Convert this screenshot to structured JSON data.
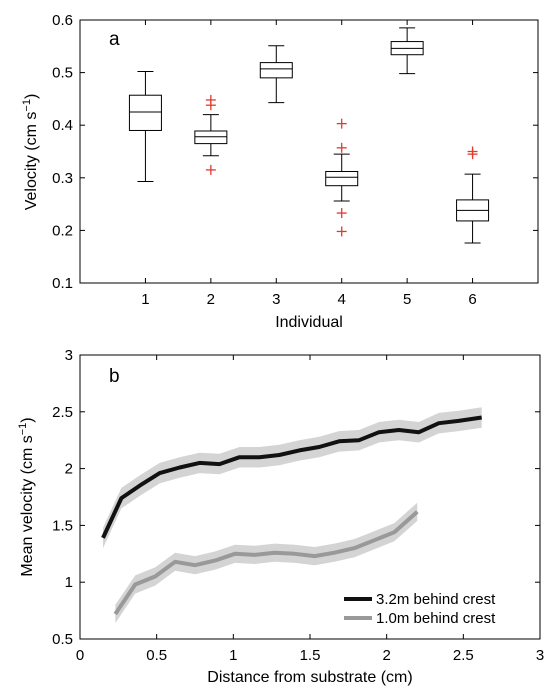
{
  "chart_data": [
    {
      "type": "box",
      "panel_label": "a",
      "xlabel": "Individual",
      "ylabel": "Velocity (cm s",
      "ylabel_sup": "−1",
      "ylabel_end": ")",
      "ylim": [
        0.1,
        0.6
      ],
      "yticks": [
        0.1,
        0.2,
        0.3,
        0.4,
        0.5,
        0.6
      ],
      "categories": [
        "1",
        "2",
        "3",
        "4",
        "5",
        "6"
      ],
      "outlier_color": "#e03a2e",
      "boxes": [
        {
          "category": "1",
          "whisker_low": 0.293,
          "q1": 0.39,
          "median": 0.425,
          "q3": 0.457,
          "whisker_high": 0.502,
          "outliers": []
        },
        {
          "category": "2",
          "whisker_low": 0.342,
          "q1": 0.365,
          "median": 0.378,
          "q3": 0.389,
          "whisker_high": 0.42,
          "outliers": [
            0.315,
            0.438,
            0.448
          ]
        },
        {
          "category": "3",
          "whisker_low": 0.443,
          "q1": 0.49,
          "median": 0.507,
          "q3": 0.519,
          "whisker_high": 0.551,
          "outliers": []
        },
        {
          "category": "4",
          "whisker_low": 0.256,
          "q1": 0.285,
          "median": 0.301,
          "q3": 0.312,
          "whisker_high": 0.345,
          "outliers": [
            0.198,
            0.233,
            0.357,
            0.403
          ]
        },
        {
          "category": "5",
          "whisker_low": 0.498,
          "q1": 0.534,
          "median": 0.546,
          "q3": 0.559,
          "whisker_high": 0.585,
          "outliers": []
        },
        {
          "category": "6",
          "whisker_low": 0.176,
          "q1": 0.218,
          "median": 0.238,
          "q3": 0.258,
          "whisker_high": 0.307,
          "outliers": [
            0.345,
            0.35
          ]
        }
      ]
    },
    {
      "type": "line",
      "panel_label": "b",
      "xlabel": "Distance from substrate (cm)",
      "ylabel": "Mean velocity (cm s",
      "ylabel_sup": "−1",
      "ylabel_end": ")",
      "xlim": [
        0,
        3
      ],
      "ylim": [
        0.5,
        3
      ],
      "xticks": [
        0,
        0.5,
        1,
        1.5,
        2,
        2.5,
        3
      ],
      "xtick_labels": [
        "0",
        "0.5",
        "1",
        "1.5",
        "2",
        "2.5",
        "3"
      ],
      "yticks": [
        0.5,
        1,
        1.5,
        2,
        2.5,
        3
      ],
      "ytick_labels": [
        "0.5",
        "1",
        "1.5",
        "2",
        "2.5",
        "3"
      ],
      "legend_position": "bottom-right",
      "series": [
        {
          "name": "3.2m behind crest",
          "color": "#111111",
          "band_color": "#d4d4d4",
          "x": [
            0.15,
            0.27,
            0.39,
            0.52,
            0.65,
            0.78,
            0.91,
            1.04,
            1.17,
            1.3,
            1.43,
            1.56,
            1.69,
            1.82,
            1.95,
            2.08,
            2.21,
            2.34,
            2.47,
            2.62
          ],
          "y": [
            1.39,
            1.74,
            1.85,
            1.96,
            2.01,
            2.05,
            2.04,
            2.1,
            2.1,
            2.12,
            2.16,
            2.19,
            2.24,
            2.25,
            2.32,
            2.34,
            2.32,
            2.4,
            2.42,
            2.45
          ],
          "band": 0.09
        },
        {
          "name": "1.0m behind crest",
          "color": "#999999",
          "band_color": "#d4d4d4",
          "x": [
            0.23,
            0.36,
            0.49,
            0.62,
            0.75,
            0.88,
            1.01,
            1.14,
            1.27,
            1.4,
            1.53,
            1.66,
            1.79,
            1.92,
            2.05,
            2.2
          ],
          "y": [
            0.72,
            0.98,
            1.05,
            1.18,
            1.15,
            1.19,
            1.25,
            1.24,
            1.26,
            1.25,
            1.23,
            1.26,
            1.3,
            1.37,
            1.44,
            1.62
          ],
          "band": 0.08
        }
      ]
    }
  ]
}
